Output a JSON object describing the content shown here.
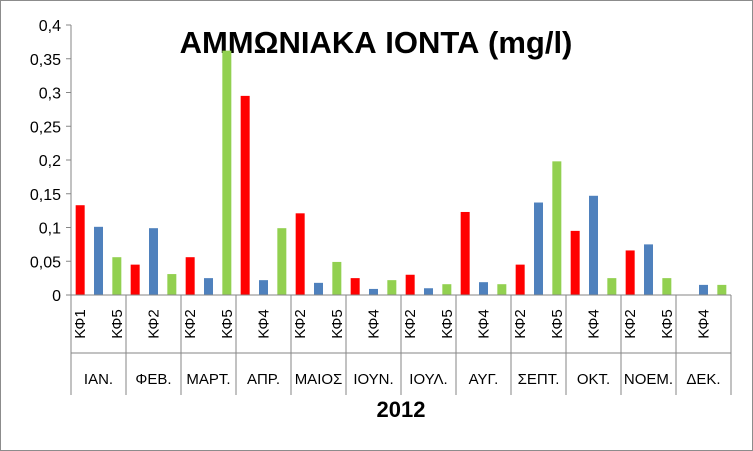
{
  "chart_data": {
    "type": "bar",
    "title": "ΑΜΜΩΝΙΑΚΑ ΙΟΝΤΑ (mg/l)",
    "xlabel": "2012",
    "ylabel": "",
    "ylim": [
      0,
      0.4
    ],
    "y_ticks": [
      "0",
      "0,05",
      "0,1",
      "0,15",
      "0,2",
      "0,25",
      "0,3",
      "0,35",
      "0,4"
    ],
    "grid": false,
    "legend": "none",
    "series_colors": [
      "#ff0000",
      "#4f81bd",
      "#92d050"
    ],
    "months": [
      {
        "label": "ΙΑΝ.",
        "values": [
          0.133,
          0.101,
          0.056
        ]
      },
      {
        "label": "ΦΕΒ.",
        "values": [
          0.045,
          0.099,
          0.031
        ]
      },
      {
        "label": "ΜΑΡΤ.",
        "values": [
          0.056,
          0.025,
          0.362
        ]
      },
      {
        "label": "ΑΠΡ.",
        "values": [
          0.295,
          0.022,
          0.099
        ]
      },
      {
        "label": "ΜΑΙΟΣ",
        "values": [
          0.121,
          0.018,
          0.049
        ]
      },
      {
        "label": "ΙΟΥΝ.",
        "values": [
          0.025,
          0.009,
          0.022
        ]
      },
      {
        "label": "ΙΟΥΛ.",
        "values": [
          0.03,
          0.01,
          0.016
        ]
      },
      {
        "label": "ΑΥΓ.",
        "values": [
          0.123,
          0.019,
          0.016
        ]
      },
      {
        "label": "ΣΕΠΤ.",
        "values": [
          0.045,
          0.137,
          0.198
        ]
      },
      {
        "label": "ΟΚΤ.",
        "values": [
          0.095,
          0.147,
          0.025
        ]
      },
      {
        "label": "ΝΟΕΜ.",
        "values": [
          0.066,
          0.075,
          0.025
        ]
      },
      {
        "label": "ΔΕΚ.",
        "values": [
          0.0,
          0.015,
          0.015
        ]
      }
    ],
    "subcategory_labels": [
      [
        "ΚΦ1",
        "ΚΦ5"
      ],
      [
        "ΚΦ2"
      ],
      [
        "ΚΦ2",
        "ΚΦ5"
      ],
      [
        "ΚΦ4"
      ],
      [
        "ΚΦ2",
        "ΚΦ5"
      ],
      [
        "ΚΦ4"
      ],
      [
        "ΚΦ2",
        "ΚΦ5"
      ],
      [
        "ΚΦ4"
      ],
      [
        "ΚΦ2",
        "ΚΦ5"
      ],
      [
        "ΚΦ4"
      ],
      [
        "ΚΦ2",
        "ΚΦ5"
      ],
      [
        "ΚΦ4"
      ]
    ]
  }
}
